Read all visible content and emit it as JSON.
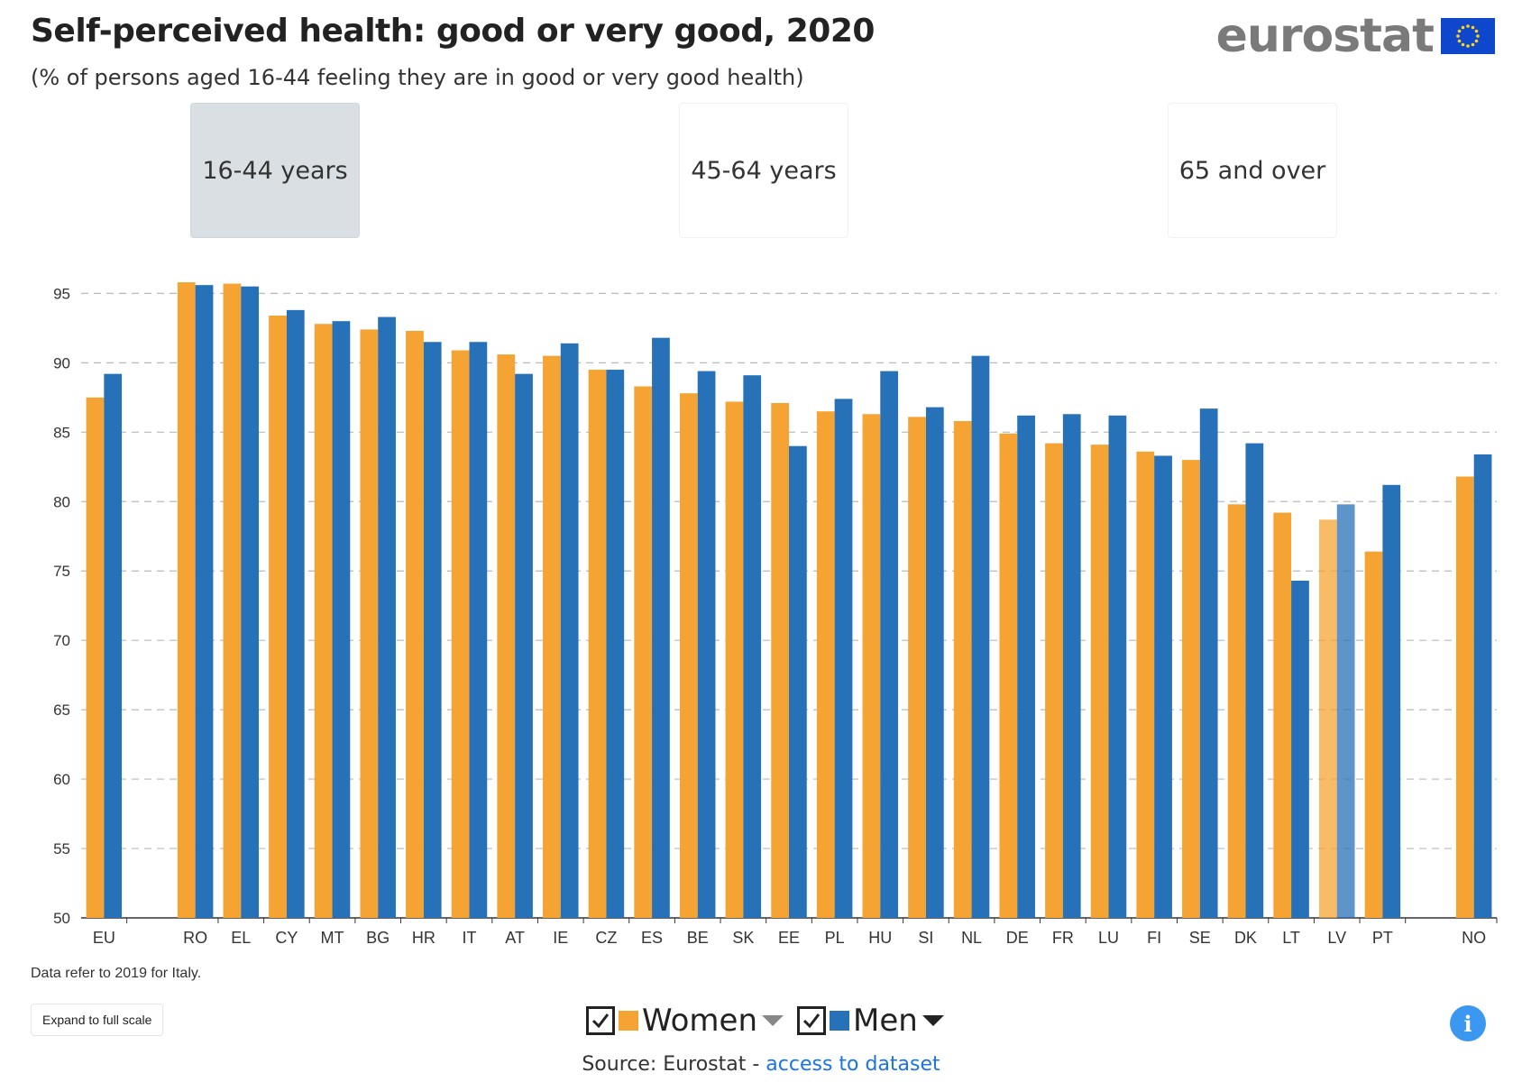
{
  "header": {
    "title": "Self-perceived health: good or very good, 2020",
    "subtitle": "(% of persons aged 16-44 feeling they are in good or very good health)",
    "logo_text": "eurostat"
  },
  "tabs": [
    {
      "label": "16-44 years",
      "active": true
    },
    {
      "label": "45-64 years",
      "active": false
    },
    {
      "label": "65 and over",
      "active": false
    }
  ],
  "chart_data": {
    "type": "bar",
    "categories": [
      "EU",
      "",
      "RO",
      "EL",
      "CY",
      "MT",
      "BG",
      "HR",
      "IT",
      "AT",
      "IE",
      "CZ",
      "ES",
      "BE",
      "SK",
      "EE",
      "PL",
      "HU",
      "SI",
      "NL",
      "DE",
      "FR",
      "LU",
      "FI",
      "SE",
      "DK",
      "LT",
      "LV",
      "PT",
      "",
      "NO"
    ],
    "series": [
      {
        "name": "Women",
        "color": "#f5a433",
        "values": [
          87.5,
          null,
          95.8,
          95.7,
          93.4,
          92.8,
          92.4,
          92.3,
          90.9,
          90.6,
          90.5,
          89.5,
          88.3,
          87.8,
          87.2,
          87.1,
          86.5,
          86.3,
          86.1,
          85.8,
          84.9,
          84.2,
          84.1,
          83.6,
          83.0,
          79.8,
          79.2,
          78.7,
          76.4,
          null,
          81.8
        ]
      },
      {
        "name": "Men",
        "color": "#2771b8",
        "values": [
          89.2,
          null,
          95.6,
          95.5,
          93.8,
          93.0,
          93.3,
          91.5,
          91.5,
          89.2,
          91.4,
          89.5,
          91.8,
          89.4,
          89.1,
          84.0,
          87.4,
          89.4,
          86.8,
          90.5,
          86.2,
          86.3,
          86.2,
          83.3,
          86.7,
          84.2,
          74.3,
          79.8,
          81.2,
          null,
          83.4
        ]
      }
    ],
    "highlight_category": "LV",
    "ylim": [
      50,
      96
    ],
    "yticks": [
      50,
      55,
      60,
      65,
      70,
      75,
      80,
      85,
      90,
      95
    ],
    "grid": true
  },
  "footer": {
    "note": "Data refer to 2019 for Italy.",
    "expand_label": "Expand to full scale",
    "legend": [
      {
        "label": "Women",
        "color": "#f5a433",
        "checked": true
      },
      {
        "label": "Men",
        "color": "#2771b8",
        "checked": true
      }
    ],
    "source_prefix": "Source: Eurostat - ",
    "source_link": "access to dataset",
    "info_icon": "i"
  }
}
